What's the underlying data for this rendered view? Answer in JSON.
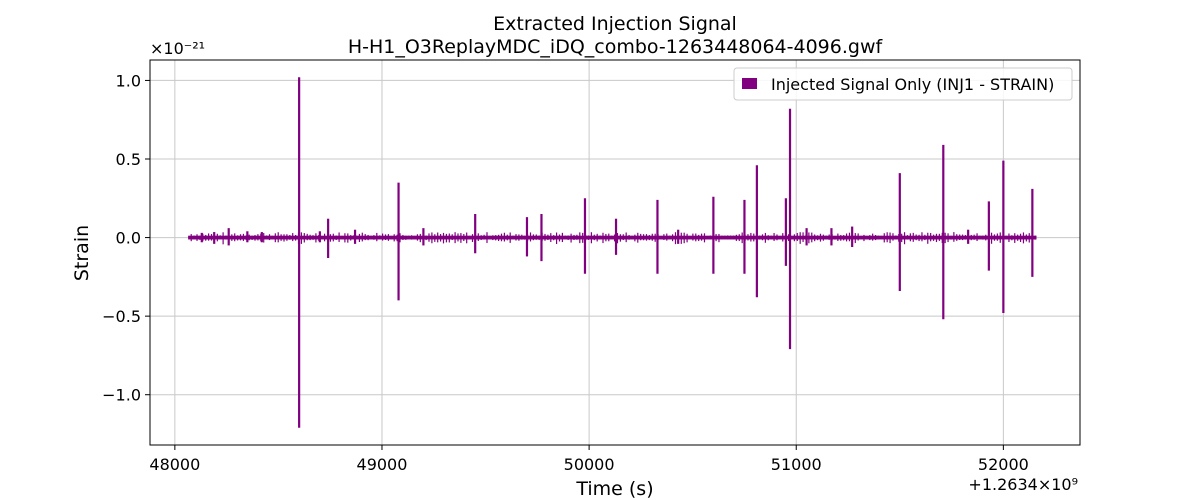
{
  "chart_data": {
    "type": "line",
    "title": "Extracted Injection Signal",
    "subtitle": "H-H1_O3ReplayMDC_iDQ_combo-1263448064-4096.gwf",
    "xlabel": "Time (s)",
    "ylabel": "Strain",
    "x_offset_label": "+1.2634×10⁹",
    "y_scale_label": "×10⁻²¹",
    "xlim": [
      47880,
      52370
    ],
    "ylim": [
      -1.32,
      1.13
    ],
    "x_ticks": [
      48000,
      49000,
      50000,
      51000,
      52000
    ],
    "x_tick_labels": [
      "48000",
      "49000",
      "50000",
      "51000",
      "52000"
    ],
    "y_ticks": [
      -1.0,
      -0.5,
      0.0,
      0.5,
      1.0
    ],
    "y_tick_labels": [
      "−1.0",
      "−0.5",
      "0.0",
      "0.5",
      "1.0"
    ],
    "grid": true,
    "legend": {
      "position": "top-right"
    },
    "series": [
      {
        "name": "Injected Signal Only (INJ1 - STRAIN)",
        "color": "#800080",
        "x_range": [
          48064,
          52160
        ],
        "baseline_amplitude": 0.012,
        "spikes": [
          {
            "t": 48130,
            "top": 0.03,
            "bottom": -0.03
          },
          {
            "t": 48190,
            "top": 0.035,
            "bottom": -0.04
          },
          {
            "t": 48260,
            "top": 0.06,
            "bottom": -0.05
          },
          {
            "t": 48350,
            "top": 0.04,
            "bottom": -0.03
          },
          {
            "t": 48420,
            "top": 0.035,
            "bottom": -0.03
          },
          {
            "t": 48600,
            "top": 1.02,
            "bottom": -1.21
          },
          {
            "t": 48700,
            "top": 0.04,
            "bottom": -0.03
          },
          {
            "t": 48740,
            "top": 0.12,
            "bottom": -0.13
          },
          {
            "t": 48870,
            "top": 0.05,
            "bottom": -0.04
          },
          {
            "t": 49080,
            "top": 0.35,
            "bottom": -0.4
          },
          {
            "t": 49200,
            "top": 0.06,
            "bottom": -0.05
          },
          {
            "t": 49450,
            "top": 0.15,
            "bottom": -0.1
          },
          {
            "t": 49700,
            "top": 0.13,
            "bottom": -0.12
          },
          {
            "t": 49770,
            "top": 0.15,
            "bottom": -0.15
          },
          {
            "t": 49980,
            "top": 0.25,
            "bottom": -0.23
          },
          {
            "t": 50130,
            "top": 0.12,
            "bottom": -0.11
          },
          {
            "t": 50330,
            "top": 0.24,
            "bottom": -0.23
          },
          {
            "t": 50430,
            "top": 0.05,
            "bottom": -0.04
          },
          {
            "t": 50600,
            "top": 0.26,
            "bottom": -0.23
          },
          {
            "t": 50750,
            "top": 0.24,
            "bottom": -0.23
          },
          {
            "t": 50810,
            "top": 0.46,
            "bottom": -0.38
          },
          {
            "t": 50950,
            "top": 0.25,
            "bottom": -0.18
          },
          {
            "t": 50970,
            "top": 0.82,
            "bottom": -0.71
          },
          {
            "t": 51050,
            "top": 0.06,
            "bottom": -0.05
          },
          {
            "t": 51170,
            "top": 0.06,
            "bottom": -0.05
          },
          {
            "t": 51270,
            "top": 0.07,
            "bottom": -0.06
          },
          {
            "t": 51500,
            "top": 0.41,
            "bottom": -0.34
          },
          {
            "t": 51710,
            "top": 0.59,
            "bottom": -0.52
          },
          {
            "t": 51830,
            "top": 0.05,
            "bottom": -0.04
          },
          {
            "t": 51930,
            "top": 0.23,
            "bottom": -0.21
          },
          {
            "t": 52000,
            "top": 0.49,
            "bottom": -0.48
          },
          {
            "t": 52140,
            "top": 0.31,
            "bottom": -0.25
          }
        ]
      }
    ]
  }
}
